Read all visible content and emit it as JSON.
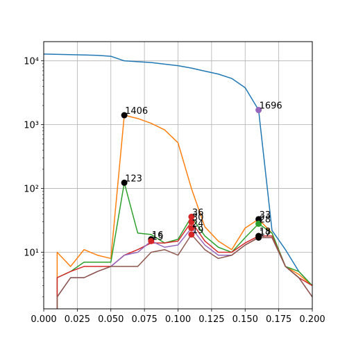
{
  "chart_data": {
    "type": "line",
    "title": "",
    "xlabel": "",
    "ylabel": "",
    "xlim": [
      0.0,
      0.2
    ],
    "ylim": [
      1.3,
      20000
    ],
    "yscale": "log",
    "grid": true,
    "x_ticks": [
      0.0,
      0.025,
      0.05,
      0.075,
      0.1,
      0.125,
      0.15,
      0.175,
      0.2
    ],
    "x_tick_labels": [
      "0.000",
      "0.025",
      "0.050",
      "0.075",
      "0.100",
      "0.125",
      "0.150",
      "0.175",
      "0.200"
    ],
    "y_ticks": [
      10,
      100,
      1000,
      10000
    ],
    "y_tick_labels": [
      "10¹",
      "10²",
      "10³",
      "10⁴"
    ],
    "series": [
      {
        "color": "#1f77b4",
        "points": [
          [
            0.0,
            12800
          ],
          [
            0.02,
            12500
          ],
          [
            0.04,
            12200
          ],
          [
            0.05,
            11800
          ],
          [
            0.06,
            10000
          ],
          [
            0.07,
            9700
          ],
          [
            0.08,
            9400
          ],
          [
            0.09,
            8900
          ],
          [
            0.1,
            8400
          ],
          [
            0.11,
            7700
          ],
          [
            0.12,
            6900
          ],
          [
            0.13,
            6200
          ],
          [
            0.14,
            5300
          ],
          [
            0.15,
            3800
          ],
          [
            0.16,
            1696
          ],
          [
            0.17,
            22
          ],
          [
            0.18,
            11
          ],
          [
            0.19,
            5
          ],
          [
            0.2,
            3
          ]
        ]
      },
      {
        "color": "#ff7f0e",
        "points": [
          [
            0.01,
            1.3
          ],
          [
            0.01,
            10
          ],
          [
            0.02,
            6
          ],
          [
            0.03,
            11
          ],
          [
            0.04,
            9
          ],
          [
            0.05,
            8
          ],
          [
            0.06,
            1406
          ],
          [
            0.07,
            1250
          ],
          [
            0.08,
            1050
          ],
          [
            0.09,
            830
          ],
          [
            0.1,
            520
          ],
          [
            0.11,
            100
          ],
          [
            0.12,
            25
          ],
          [
            0.13,
            15
          ],
          [
            0.14,
            11
          ],
          [
            0.15,
            24
          ],
          [
            0.16,
            33
          ],
          [
            0.17,
            20
          ],
          [
            0.18,
            6
          ],
          [
            0.19,
            4.5
          ],
          [
            0.2,
            3
          ]
        ]
      },
      {
        "color": "#2ca02c",
        "points": [
          [
            0.01,
            1.3
          ],
          [
            0.01,
            4
          ],
          [
            0.02,
            5
          ],
          [
            0.03,
            7
          ],
          [
            0.04,
            7
          ],
          [
            0.05,
            7
          ],
          [
            0.06,
            123
          ],
          [
            0.07,
            20
          ],
          [
            0.08,
            19
          ],
          [
            0.09,
            14
          ],
          [
            0.1,
            16
          ],
          [
            0.11,
            36
          ],
          [
            0.12,
            18
          ],
          [
            0.13,
            12
          ],
          [
            0.14,
            10
          ],
          [
            0.15,
            17
          ],
          [
            0.16,
            28
          ],
          [
            0.17,
            20
          ],
          [
            0.18,
            6
          ],
          [
            0.19,
            5
          ],
          [
            0.2,
            3
          ]
        ]
      },
      {
        "color": "#d62728",
        "points": [
          [
            0.01,
            1.3
          ],
          [
            0.01,
            4
          ],
          [
            0.02,
            5
          ],
          [
            0.03,
            6
          ],
          [
            0.04,
            6
          ],
          [
            0.05,
            6
          ],
          [
            0.06,
            9
          ],
          [
            0.07,
            11
          ],
          [
            0.08,
            14
          ],
          [
            0.09,
            14
          ],
          [
            0.1,
            15
          ],
          [
            0.11,
            30
          ],
          [
            0.12,
            15
          ],
          [
            0.13,
            10
          ],
          [
            0.14,
            10
          ],
          [
            0.15,
            14
          ],
          [
            0.16,
            18
          ],
          [
            0.17,
            18
          ],
          [
            0.18,
            6
          ],
          [
            0.19,
            4
          ],
          [
            0.2,
            3
          ]
        ]
      },
      {
        "color": "#9467bd",
        "points": [
          [
            0.01,
            1.3
          ],
          [
            0.01,
            2
          ],
          [
            0.02,
            4
          ],
          [
            0.03,
            4
          ],
          [
            0.04,
            5
          ],
          [
            0.05,
            6
          ],
          [
            0.06,
            9
          ],
          [
            0.07,
            10
          ],
          [
            0.08,
            15
          ],
          [
            0.09,
            12
          ],
          [
            0.1,
            13
          ],
          [
            0.11,
            24
          ],
          [
            0.12,
            13
          ],
          [
            0.13,
            9
          ],
          [
            0.14,
            9
          ],
          [
            0.15,
            13
          ],
          [
            0.16,
            17
          ],
          [
            0.17,
            17
          ],
          [
            0.18,
            6
          ],
          [
            0.19,
            4
          ],
          [
            0.2,
            2
          ]
        ]
      },
      {
        "color": "#8c564b",
        "points": [
          [
            0.01,
            1.3
          ],
          [
            0.01,
            2
          ],
          [
            0.02,
            4
          ],
          [
            0.03,
            4
          ],
          [
            0.04,
            5
          ],
          [
            0.05,
            6
          ],
          [
            0.06,
            6
          ],
          [
            0.07,
            6
          ],
          [
            0.08,
            10
          ],
          [
            0.09,
            11
          ],
          [
            0.1,
            9
          ],
          [
            0.11,
            19
          ],
          [
            0.12,
            11
          ],
          [
            0.13,
            8
          ],
          [
            0.14,
            9
          ],
          [
            0.15,
            13
          ],
          [
            0.16,
            17
          ],
          [
            0.17,
            17
          ],
          [
            0.18,
            6
          ],
          [
            0.19,
            4
          ],
          [
            0.2,
            2
          ]
        ]
      }
    ],
    "annotations": [
      {
        "x": 0.06,
        "y": 1406,
        "label": "1406",
        "marker_color": "#000000"
      },
      {
        "x": 0.06,
        "y": 123,
        "label": "123",
        "marker_color": "#000000"
      },
      {
        "x": 0.08,
        "y": 16,
        "label": "16",
        "marker_color": "#000000"
      },
      {
        "x": 0.08,
        "y": 15,
        "label": "15",
        "marker_color": "#d62728"
      },
      {
        "x": 0.11,
        "y": 36,
        "label": "36",
        "marker_color": "#d62728"
      },
      {
        "x": 0.11,
        "y": 30,
        "label": "30",
        "marker_color": "#d62728"
      },
      {
        "x": 0.11,
        "y": 24,
        "label": "24",
        "marker_color": "#d62728"
      },
      {
        "x": 0.11,
        "y": 19,
        "label": "19",
        "marker_color": "#d62728"
      },
      {
        "x": 0.16,
        "y": 1696,
        "label": "1696",
        "marker_color": "#9467bd"
      },
      {
        "x": 0.16,
        "y": 33,
        "label": "33",
        "marker_color": "#000000"
      },
      {
        "x": 0.16,
        "y": 28,
        "label": "28",
        "marker_color": "#2ca02c"
      },
      {
        "x": 0.16,
        "y": 18,
        "label": "18",
        "marker_color": "#000000"
      },
      {
        "x": 0.16,
        "y": 17,
        "label": "17",
        "marker_color": "#000000"
      }
    ]
  }
}
